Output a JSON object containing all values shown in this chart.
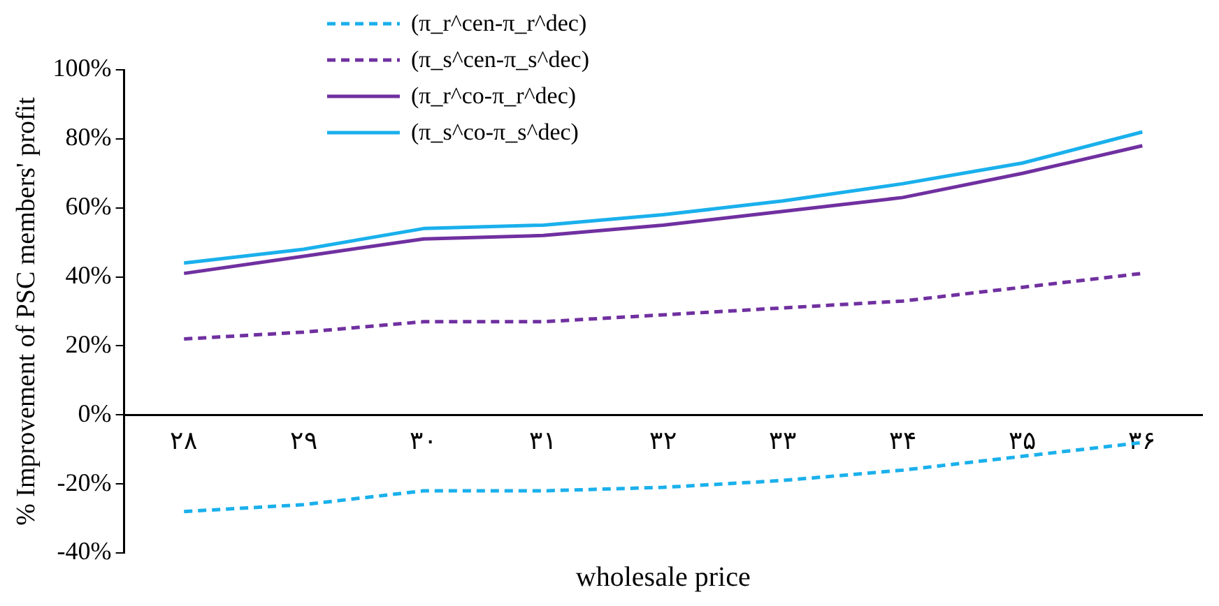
{
  "chart_data": {
    "type": "line",
    "xlabel": "wholesale price",
    "ylabel": "% Improvement of PSC members' profit",
    "categories": [
      "۲۸",
      "۲۹",
      "۳۰",
      "۳۱",
      "۳۲",
      "۳۳",
      "۳۴",
      "۳۵",
      "۳۶"
    ],
    "series": [
      {
        "name": "(π_r^cen-π_r^dec)",
        "color": "#1ab0ec",
        "line_style": "dashed",
        "values": [
          -28,
          -26,
          -22,
          -22,
          -21,
          -19,
          -16,
          -12,
          -8
        ]
      },
      {
        "name": "(π_s^cen-π_s^dec)",
        "color": "#7030a0",
        "line_style": "dashed",
        "values": [
          22,
          24,
          27,
          27,
          29,
          31,
          33,
          37,
          41
        ]
      },
      {
        "name": "(π_r^co-π_r^dec)",
        "color": "#7030a0",
        "line_style": "solid",
        "values": [
          41,
          46,
          51,
          52,
          55,
          59,
          63,
          70,
          78
        ]
      },
      {
        "name": "(π_s^co-π_s^dec)",
        "color": "#1ab0ec",
        "line_style": "solid",
        "values": [
          44,
          48,
          54,
          55,
          58,
          62,
          67,
          73,
          82
        ]
      }
    ],
    "ylim": [
      -40,
      100
    ],
    "yticks": [
      {
        "value": -40,
        "label": "-40%"
      },
      {
        "value": -20,
        "label": "-20%"
      },
      {
        "value": 0,
        "label": "0%"
      },
      {
        "value": 20,
        "label": "20%"
      },
      {
        "value": 40,
        "label": "40%"
      },
      {
        "value": 60,
        "label": "60%"
      },
      {
        "value": 80,
        "label": "80%"
      },
      {
        "value": 100,
        "label": "100%"
      }
    ],
    "grid": false,
    "legend": "top",
    "marker": "none"
  }
}
